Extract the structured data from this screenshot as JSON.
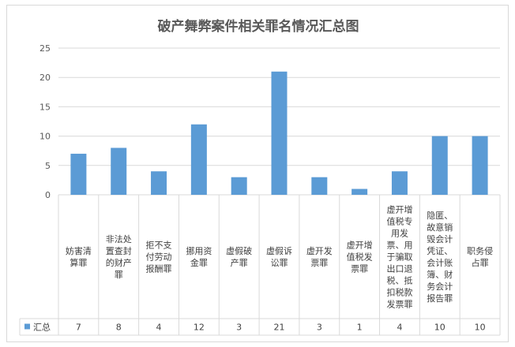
{
  "chart_data": {
    "type": "bar",
    "title": "破产舞弊案件相关罪名情况汇总图",
    "categories": [
      [
        "妨害清",
        "算罪"
      ],
      [
        "非法处",
        "置查封",
        "的财产",
        "罪"
      ],
      [
        "拒不支",
        "付劳动",
        "报酬罪"
      ],
      [
        "挪用资",
        "金罪"
      ],
      [
        "虚假破",
        "产罪"
      ],
      [
        "虚假诉",
        "讼罪"
      ],
      [
        "虚开发",
        "票罪"
      ],
      [
        "虚开增",
        "值税发",
        "票罪"
      ],
      [
        "虚开增",
        "值税专",
        "用发",
        "票、用",
        "于骗取",
        "出口退",
        "税、抵",
        "扣税款",
        "发票罪"
      ],
      [
        "隐匿、",
        "故意销",
        "毁会计",
        "凭证、",
        "会计账",
        "簿、财",
        "务会计",
        "报告罪"
      ],
      [
        "职务侵",
        "占罪"
      ]
    ],
    "series": [
      {
        "name": "汇总",
        "values": [
          7,
          8,
          4,
          12,
          3,
          21,
          3,
          1,
          4,
          10,
          10
        ]
      }
    ],
    "yticks": [
      0,
      5,
      10,
      15,
      20,
      25
    ],
    "ylim": [
      0,
      25
    ],
    "bar_color": "#5b9bd5",
    "grid_color": "#d9d9d9",
    "grid": true,
    "legend": "data-table-row"
  }
}
